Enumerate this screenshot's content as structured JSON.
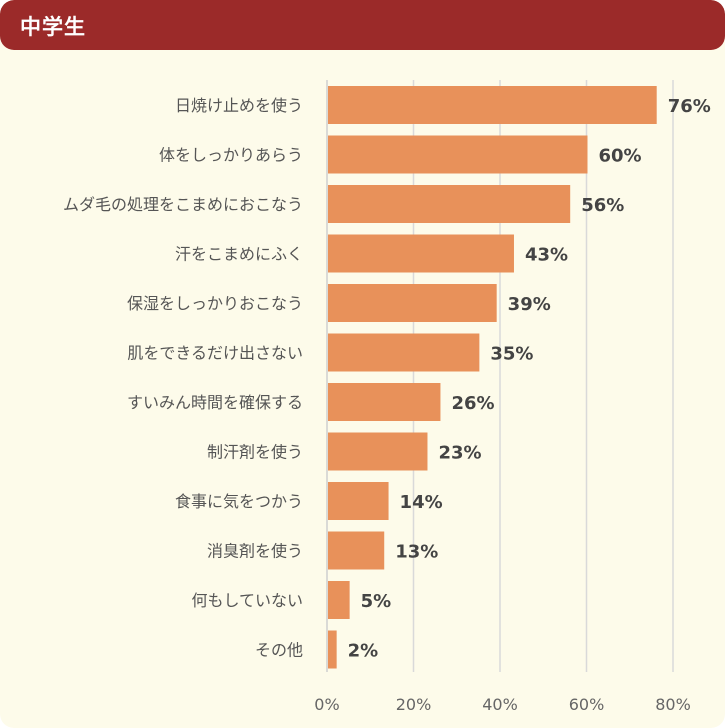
{
  "header": {
    "title": "中学生"
  },
  "colors": {
    "header_bg": "#9b2a29",
    "panel_bg": "#fdfbea",
    "bar": "#e8915a",
    "grid": "#d9d9d9"
  },
  "chart_data": {
    "type": "bar",
    "orientation": "horizontal",
    "categories": [
      "日焼け止めを使う",
      "体をしっかりあらう",
      "ムダ毛の処理をこまめにおこなう",
      "汗をこまめにふく",
      "保湿をしっかりおこなう",
      "肌をできるだけ出さない",
      "すいみん時間を確保する",
      "制汗剤を使う",
      "食事に気をつかう",
      "消臭剤を使う",
      "何もしていない",
      "その他"
    ],
    "values": [
      76,
      60,
      56,
      43,
      39,
      35,
      26,
      23,
      14,
      13,
      5,
      2
    ],
    "value_labels": [
      "76%",
      "60%",
      "56%",
      "43%",
      "39%",
      "35%",
      "26%",
      "23%",
      "14%",
      "13%",
      "5%",
      "2%"
    ],
    "xlim": [
      0,
      80
    ],
    "x_ticks": [
      0,
      20,
      40,
      60,
      80
    ],
    "x_tick_labels": [
      "0%",
      "20%",
      "40%",
      "60%",
      "80%"
    ],
    "grid": true
  }
}
